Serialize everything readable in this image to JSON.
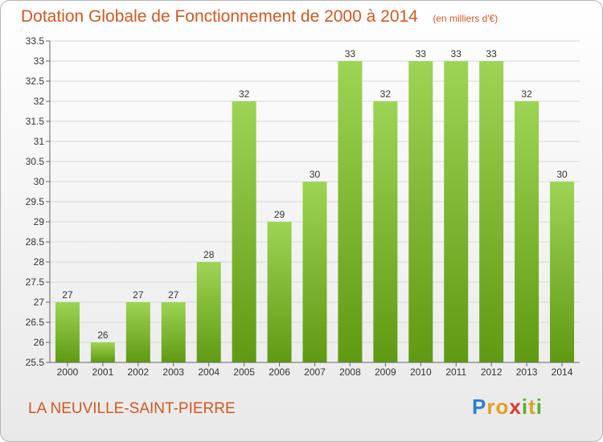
{
  "title": "Dotation Globale de Fonctionnement de 2000 à 2014",
  "subtitle": "(en milliers d'€)",
  "commune": "LA NEUVILLE-SAINT-PIERRE",
  "logo": {
    "letters": [
      "P",
      "r",
      "o",
      "x",
      "i",
      "t",
      "i"
    ],
    "colors": [
      "#2a7fd4",
      "#e0a020",
      "#e0a020",
      "#d83a2a",
      "#58b030",
      "#e0a020",
      "#58b030"
    ]
  },
  "colors": {
    "bar_top": "#9ed455",
    "bar_bottom": "#5f9a12",
    "grid": "#d8d8d8",
    "text": "#333333",
    "accent": "#d2581f"
  },
  "chart_data": {
    "type": "bar",
    "categories": [
      "2000",
      "2001",
      "2002",
      "2003",
      "2004",
      "2005",
      "2006",
      "2007",
      "2008",
      "2009",
      "2010",
      "2011",
      "2012",
      "2013",
      "2014"
    ],
    "values": [
      27,
      26,
      27,
      27,
      28,
      32,
      29,
      30,
      33,
      32,
      33,
      33,
      33,
      32,
      30
    ],
    "data_labels": [
      "27",
      "26",
      "27",
      "27",
      "28",
      "32",
      "29",
      "30",
      "33",
      "32",
      "33",
      "33",
      "33",
      "32",
      "30"
    ],
    "yticks": [
      "25.5",
      "26",
      "26.5",
      "27",
      "27.5",
      "28",
      "28.5",
      "29",
      "29.5",
      "30",
      "30.5",
      "31",
      "31.5",
      "32",
      "32.5",
      "33",
      "33.5"
    ],
    "ylim": [
      25.5,
      33.5
    ],
    "grid": true,
    "xlabel": "",
    "ylabel": ""
  }
}
